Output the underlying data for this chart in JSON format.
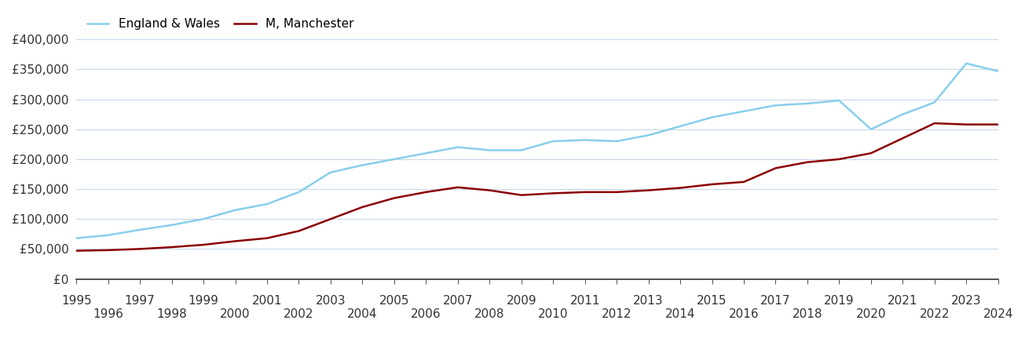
{
  "years": [
    1995,
    1996,
    1997,
    1998,
    1999,
    2000,
    2001,
    2002,
    2003,
    2004,
    2005,
    2006,
    2007,
    2008,
    2009,
    2010,
    2011,
    2012,
    2013,
    2014,
    2015,
    2016,
    2017,
    2018,
    2019,
    2020,
    2021,
    2022,
    2023,
    2024
  ],
  "manchester": [
    47000,
    48000,
    50000,
    53000,
    57000,
    63000,
    68000,
    80000,
    100000,
    120000,
    135000,
    145000,
    153000,
    148000,
    140000,
    143000,
    145000,
    145000,
    148000,
    152000,
    158000,
    162000,
    185000,
    195000,
    200000,
    210000,
    235000,
    260000,
    258000,
    258000
  ],
  "england_wales": [
    68000,
    73000,
    82000,
    90000,
    100000,
    115000,
    125000,
    145000,
    178000,
    190000,
    200000,
    210000,
    220000,
    215000,
    215000,
    230000,
    232000,
    230000,
    240000,
    255000,
    270000,
    280000,
    290000,
    293000,
    298000,
    250000,
    275000,
    295000,
    360000,
    347000
  ],
  "manchester_color": "#8b0000",
  "england_wales_color": "#87ceeb",
  "background_color": "#ffffff",
  "grid_color": "#c8d8e8",
  "ylim": [
    0,
    420000
  ],
  "yticks": [
    0,
    50000,
    100000,
    150000,
    200000,
    250000,
    300000,
    350000,
    400000
  ],
  "ytick_labels": [
    "£0",
    "£50,000",
    "£100,000",
    "£150,000",
    "£200,000",
    "£250,000",
    "£300,000",
    "£350,000",
    "£400,000"
  ],
  "xtick_top": [
    1995,
    1997,
    1999,
    2001,
    2003,
    2005,
    2007,
    2009,
    2011,
    2013,
    2015,
    2017,
    2019,
    2021,
    2023
  ],
  "xtick_bottom": [
    1996,
    1998,
    2000,
    2002,
    2004,
    2006,
    2008,
    2010,
    2012,
    2014,
    2016,
    2018,
    2020,
    2022,
    2024
  ],
  "legend_manchester": "M, Manchester",
  "legend_england_wales": "England & Wales",
  "line_width": 1.8,
  "axis_color": "#333333",
  "tick_color": "#333333",
  "font_size_ticks": 11,
  "font_size_legend": 11
}
